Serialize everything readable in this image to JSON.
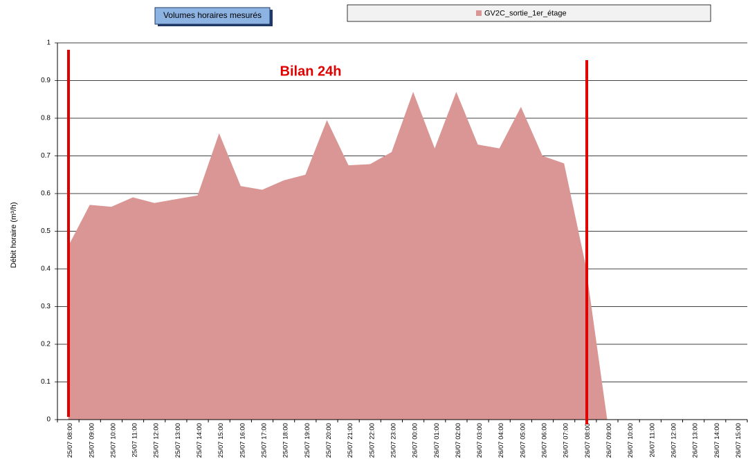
{
  "chart_data": {
    "type": "area",
    "title": "Volumes horaires mesurés",
    "annotation": "Bilan 24h",
    "y_label": "Débit horaire (m³/h)",
    "categories": [
      "25/07 08:00",
      "25/07 09:00",
      "25/07 10:00",
      "25/07 11:00",
      "25/07 12:00",
      "25/07 13:00",
      "25/07 14:00",
      "25/07 15:00",
      "25/07 16:00",
      "25/07 17:00",
      "25/07 18:00",
      "25/07 19:00",
      "25/07 20:00",
      "25/07 21:00",
      "25/07 22:00",
      "25/07 23:00",
      "26/07 00:00",
      "26/07 01:00",
      "26/07 02:00",
      "26/07 03:00",
      "26/07 04:00",
      "26/07 05:00",
      "26/07 06:00",
      "26/07 07:00",
      "26/07 08:00",
      "26/07 09:00",
      "26/07 10:00",
      "26/07 11:00",
      "26/07 12:00",
      "26/07 13:00",
      "26/07 14:00",
      "26/07 15:00"
    ],
    "series": [
      {
        "name": "GV2C_sortie_1er_étage",
        "color": "#d99694",
        "values": [
          0.46,
          0.57,
          0.565,
          0.59,
          0.575,
          0.585,
          0.595,
          0.76,
          0.62,
          0.61,
          0.635,
          0.65,
          0.795,
          0.675,
          0.678,
          0.71,
          0.87,
          0.72,
          0.87,
          0.73,
          0.72,
          0.83,
          0.7,
          0.68,
          0.41,
          0,
          null,
          null,
          null,
          null,
          null,
          null
        ]
      }
    ],
    "ylim": [
      0,
      1
    ],
    "yticks": [
      0,
      0.1,
      0.2,
      0.3,
      0.4,
      0.5,
      0.6,
      0.7,
      0.8,
      0.9,
      1
    ],
    "grid": true
  }
}
